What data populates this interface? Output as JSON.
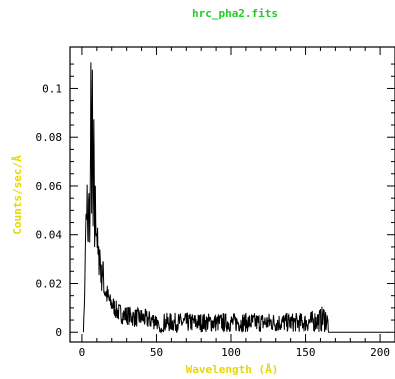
{
  "chart_data": {
    "type": "line",
    "title": "hrc_pha2.fits",
    "xlabel": "Wavelength (Å)",
    "ylabel": "Counts/sec/Å",
    "xlim": [
      -8,
      210
    ],
    "ylim": [
      -0.004,
      0.117
    ],
    "xticks": [
      0,
      50,
      100,
      150,
      200
    ],
    "xtick_labels": [
      "0",
      "50",
      "100",
      "150",
      "200"
    ],
    "yticks": [
      0,
      0.02,
      0.04,
      0.06,
      0.08,
      0.1
    ],
    "ytick_labels": [
      "0",
      "0.02",
      "0.04",
      "0.06",
      "0.08",
      "0.1"
    ],
    "grid": false,
    "colors": {
      "title": "#22cc22",
      "labels": "#e8d800",
      "line": "#000000",
      "frame": "#000000"
    },
    "series": [
      {
        "x": [
          1,
          2,
          2.5,
          3,
          3.5,
          4,
          4.5,
          5,
          5.5,
          6,
          6.5,
          7,
          7.5,
          8,
          8.5,
          9,
          10,
          11,
          12,
          13,
          14,
          15,
          17,
          19,
          21,
          23,
          25,
          28,
          31,
          35,
          40,
          45,
          50,
          52,
          53,
          54,
          55,
          60,
          70,
          80,
          90,
          100,
          110,
          120,
          130,
          140,
          150,
          160,
          163,
          165,
          165.5,
          170,
          180,
          190,
          200,
          205
        ],
        "y": [
          0.0,
          0.02,
          0.045,
          0.04,
          0.055,
          0.03,
          0.058,
          0.045,
          0.05,
          0.098,
          0.06,
          0.095,
          0.04,
          0.075,
          0.038,
          0.052,
          0.042,
          0.028,
          0.033,
          0.022,
          0.026,
          0.018,
          0.015,
          0.012,
          0.011,
          0.009,
          0.008,
          0.007,
          0.007,
          0.006,
          0.006,
          0.005,
          0.005,
          0.001,
          0.0,
          0.004,
          0.004,
          0.004,
          0.004,
          0.004,
          0.004,
          0.004,
          0.004,
          0.004,
          0.004,
          0.004,
          0.004,
          0.005,
          0.006,
          0.004,
          0.0,
          0.0,
          0.0,
          0.0,
          0.0,
          0.0
        ],
        "noise_y": [
          0,
          0.004,
          0.012,
          0.012,
          0.015,
          0.012,
          0.015,
          0.012,
          0.012,
          0.015,
          0.015,
          0.015,
          0.012,
          0.015,
          0.012,
          0.012,
          0.01,
          0.008,
          0.008,
          0.007,
          0.006,
          0.006,
          0.005,
          0.004,
          0.004,
          0.004,
          0.004,
          0.004,
          0.004,
          0.004,
          0.004,
          0.004,
          0.004,
          0.001,
          0.0,
          0.004,
          0.004,
          0.004,
          0.004,
          0.004,
          0.004,
          0.004,
          0.004,
          0.004,
          0.004,
          0.004,
          0.004,
          0.005,
          0.006,
          0.004,
          0,
          0,
          0,
          0,
          0,
          0
        ]
      }
    ]
  }
}
